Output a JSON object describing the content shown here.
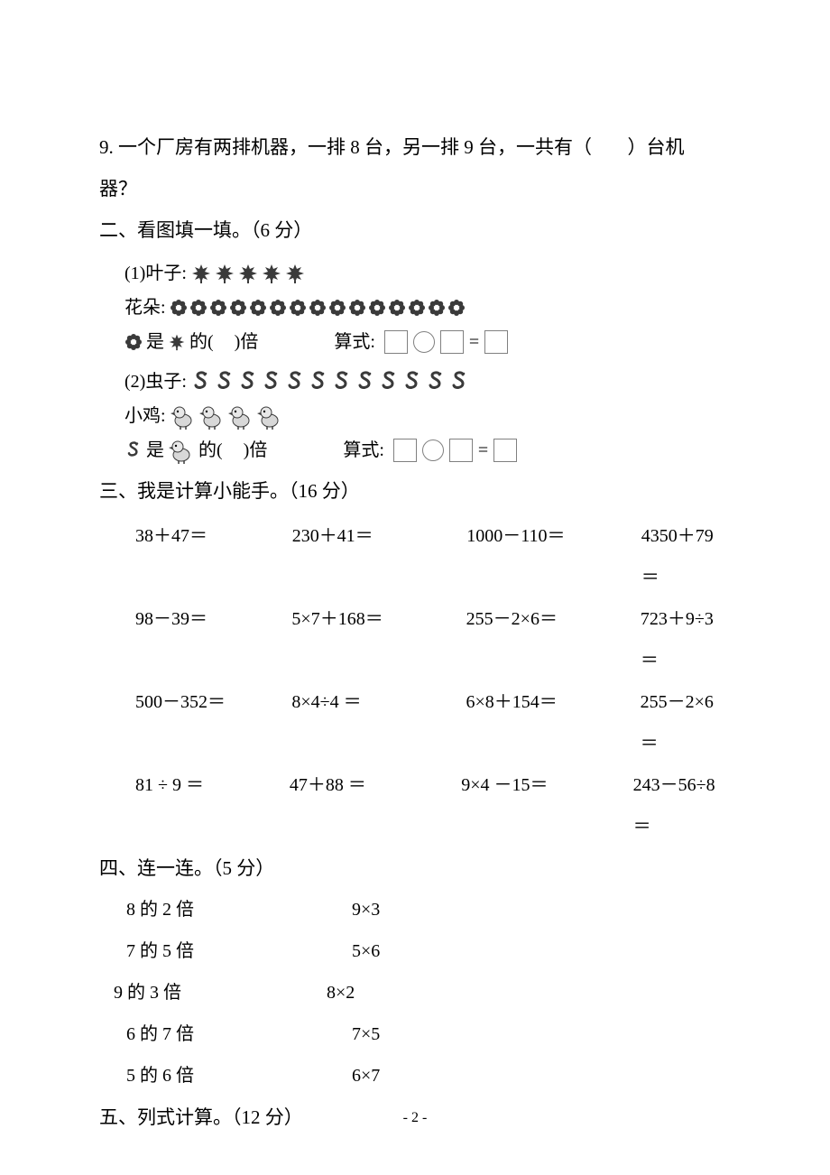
{
  "q9": {
    "text_a": "9. 一个厂房有两排机器，一排 8 台，另一排 9 台，一共有（",
    "text_b": "）台机",
    "line2": "器？"
  },
  "section2": {
    "heading": "二、看图填一填。（6 分）"
  },
  "pic": {
    "p1_label": "(1)叶子:",
    "leaf_count": 5,
    "flower_label": "花朵:",
    "flower_count": 15,
    "p1_relation_a": "是",
    "p1_relation_b": "的(",
    "p1_relation_c": ")倍",
    "formula_label": "算式:",
    "p2_label": "(2)虫子:",
    "worm_count": 12,
    "chick_label": "小鸡:",
    "chick_count": 4,
    "p2_relation_a": "是",
    "p2_relation_b": "的(",
    "p2_relation_c": ")倍"
  },
  "section3": {
    "heading": "三、我是计算小能手。（16 分）",
    "rows": [
      [
        "38＋47＝",
        "230＋41＝",
        "1000－110＝",
        "4350＋79＝"
      ],
      [
        "98－39＝",
        "5×7＋168＝",
        "255－2×6＝",
        "723＋9÷3＝"
      ],
      [
        "500－352＝",
        "8×4÷4 ＝",
        "6×8＋154＝",
        "255－2×6＝"
      ],
      [
        "81 ÷ 9 ＝",
        "47＋88 ＝",
        "9×4 －15＝",
        "243－56÷8＝"
      ]
    ]
  },
  "section4": {
    "heading": "四、连一连。（5 分）",
    "pairs": [
      {
        "left": "8 的 2 倍",
        "right": "9×3"
      },
      {
        "left": "7 的 5 倍",
        "right": "5×6"
      },
      {
        "left": "9 的 3 倍",
        "right": "8×2",
        "shift": true
      },
      {
        "left": "6 的 7 倍",
        "right": "7×5"
      },
      {
        "left": "5 的 6 倍",
        "right": "6×7"
      }
    ]
  },
  "section5": {
    "heading": "五、列式计算。（12 分）"
  },
  "footer": "- 2 -",
  "colors": {
    "text": "#000000",
    "icon": "#3a3a3a",
    "box_border": "#808080",
    "background": "#ffffff"
  }
}
